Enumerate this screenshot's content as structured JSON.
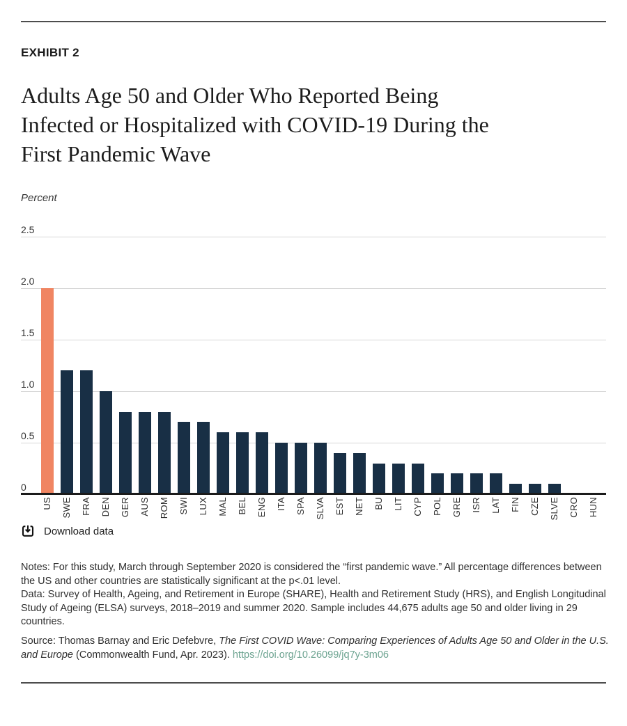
{
  "page": {
    "exhibit_label": "EXHIBIT 2",
    "title_lines": [
      "Adults Age 50 and Older Who Reported Being",
      "Infected or Hospitalized with COVID-19 During the",
      "First Pandemic Wave"
    ],
    "axis_unit_label": "Percent",
    "download_label": "Download data"
  },
  "chart_data": {
    "type": "bar",
    "title": "Adults Age 50 and Older Who Reported Being Infected or Hospitalized with COVID-19 During the First Pandemic Wave",
    "xlabel": "",
    "ylabel": "Percent",
    "ylim": [
      0,
      2.5
    ],
    "yticks": [
      2.5,
      2.0,
      1.5,
      1.0,
      0.5,
      0
    ],
    "ytick_labels": [
      "2.5",
      "2.0",
      "1.5",
      "1.0",
      "0.5",
      "0"
    ],
    "grid": true,
    "legend": "none",
    "categories": [
      "US",
      "SWE",
      "FRA",
      "DEN",
      "GER",
      "AUS",
      "ROM",
      "SWI",
      "LUX",
      "MAL",
      "BEL",
      "ENG",
      "ITA",
      "SPA",
      "SLVA",
      "EST",
      "NET",
      "BU",
      "LIT",
      "CYP",
      "POL",
      "GRE",
      "ISR",
      "LAT",
      "FIN",
      "CZE",
      "SLVE",
      "CRO",
      "HUN"
    ],
    "values": [
      2.0,
      1.2,
      1.2,
      1.0,
      0.8,
      0.8,
      0.8,
      0.7,
      0.7,
      0.6,
      0.6,
      0.6,
      0.5,
      0.5,
      0.5,
      0.4,
      0.4,
      0.3,
      0.3,
      0.3,
      0.2,
      0.2,
      0.2,
      0.2,
      0.1,
      0.1,
      0.1,
      0,
      0
    ],
    "highlight_category": "US",
    "highlight_color": "#f08562",
    "bar_color": "#182f45"
  },
  "notes": {
    "notes_line": "Notes: For this study, March through September 2020 is considered the “first pandemic wave.” All percentage differences between the US and other countries are statistically significant at the p<.01 level.",
    "data_line": "Data: Survey of Health, Ageing, and Retirement in Europe (SHARE), Health and Retirement Study (HRS), and English Longitudinal Study of Ageing (ELSA) surveys, 2018–2019 and summer 2020. Sample includes 44,675 adults age 50 and older living in 29 countries."
  },
  "source": {
    "prefix": "Source: Thomas Barnay and Eric Defebvre, ",
    "work_title": "The First COVID Wave: Comparing Experiences of Adults Age 50 and Older in the U.S. and Europe",
    "suffix": " (Commonwealth Fund, Apr. 2023). ",
    "link_text": "https://doi.org/10.26099/jq7y-3m06",
    "link_color": "#6ca390"
  },
  "colors": {
    "highlight_bar": "#f08562",
    "default_bar": "#182f45",
    "gridline": "#d7d7d7",
    "axis_baseline": "#1b1b1b",
    "rule": "#4d4d4d"
  }
}
